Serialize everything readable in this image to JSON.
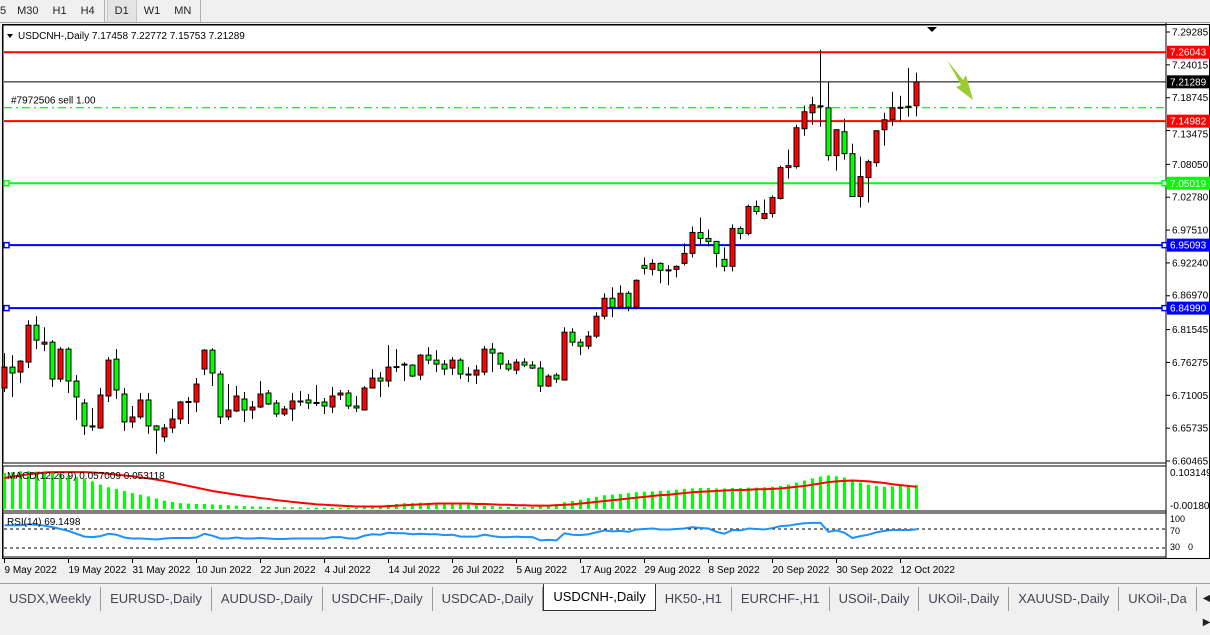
{
  "timeframes": {
    "items": [
      "5",
      "M30",
      "H1",
      "H4",
      "D1",
      "W1",
      "MN"
    ],
    "active": "D1"
  },
  "chart": {
    "header": "USDCNH-,Daily  7.17458 7.22772 7.15753 7.21289",
    "symbol": "USDCNH-",
    "period": "Daily",
    "order_label": "#7972506 sell 1.00",
    "order_level": 7.1714,
    "current_price": "7.21289",
    "price_ticks": [
      "7.29285",
      "7.24015",
      "7.18745",
      "7.13475",
      "7.08050",
      "7.02780",
      "6.97510",
      "6.92240",
      "6.86970",
      "6.81545",
      "6.76275",
      "6.71005",
      "6.65735",
      "6.60465"
    ],
    "levels": [
      {
        "value": "7.26043",
        "color": "#ff0000"
      },
      {
        "value": "7.14982",
        "color": "#ff0000"
      },
      {
        "value": "7.05019",
        "color": "#00ff00"
      },
      {
        "value": "6.95093",
        "color": "#0000ff"
      },
      {
        "value": "6.84990",
        "color": "#0000ff"
      }
    ],
    "colors": {
      "bull": "#ff0000",
      "bear": "#00ff00",
      "macd_hist": "#00ff00",
      "macd_signal": "#ff0000",
      "rsi": "#1e90ff",
      "arrow": "#9acd32",
      "order_line": "#00c800"
    },
    "arrow_icon": "down-right-arrow",
    "date_labels": [
      "9 May 2022",
      "19 May 2022",
      "31 May 2022",
      "10 Jun 2022",
      "22 Jun 2022",
      "4 Jul 2022",
      "14 Jul 2022",
      "26 Jul 2022",
      "5 Aug 2022",
      "17 Aug 2022",
      "29 Aug 2022",
      "8 Sep 2022",
      "20 Sep 2022",
      "30 Sep 2022",
      "12 Oct 2022"
    ],
    "macd": {
      "title": "MACD(12,26,9) 0.057009 0.053118",
      "scale_max": "0.103149",
      "scale_min": "-0.001805"
    },
    "rsi": {
      "title": "RSI(14) 69.1498",
      "levels": [
        "100",
        "70",
        "30",
        "0"
      ]
    }
  },
  "chart_data": {
    "type": "candlestick",
    "ohlc_order": [
      "open",
      "high",
      "low",
      "close"
    ],
    "ylim": [
      6.60465,
      7.29285
    ],
    "candles": [
      [
        6.7217,
        6.7777,
        6.7153,
        6.7553
      ],
      [
        6.7553,
        6.7745,
        6.7073,
        6.7457
      ],
      [
        6.7473,
        6.7665,
        6.7297,
        6.7649
      ],
      [
        6.7633,
        6.8305,
        6.7537,
        6.8225
      ],
      [
        6.8225,
        6.8369,
        6.7841,
        6.7985
      ],
      [
        6.7921,
        6.8193,
        6.7809,
        6.7953
      ],
      [
        6.7953,
        6.7985,
        6.7233,
        6.7361
      ],
      [
        6.7361,
        6.7873,
        6.7313,
        6.7841
      ],
      [
        6.7841,
        6.7873,
        6.7137,
        6.7329
      ],
      [
        6.7329,
        6.7425,
        6.6705,
        6.7073
      ],
      [
        6.6977,
        6.7041,
        6.6465,
        6.6609
      ],
      [
        6.6609,
        6.6897,
        6.6529,
        6.6593
      ],
      [
        6.6577,
        6.7217,
        6.6561,
        6.7105
      ],
      [
        6.7089,
        6.7713,
        6.6993,
        6.7665
      ],
      [
        6.7681,
        6.7841,
        6.7041,
        6.7185
      ],
      [
        6.7121,
        6.7217,
        6.6529,
        6.6673
      ],
      [
        6.6673,
        6.6929,
        6.6577,
        6.6753
      ],
      [
        6.6753,
        6.7137,
        6.6721,
        6.7025
      ],
      [
        6.7025,
        6.7137,
        6.6481,
        6.6609
      ],
      [
        6.6609,
        6.6625,
        6.6161,
        6.6545
      ],
      [
        6.6433,
        6.6641,
        6.6353,
        6.6577
      ],
      [
        6.6577,
        6.6881,
        6.6497,
        6.6721
      ],
      [
        6.6721,
        6.7009,
        6.6641,
        6.6993
      ],
      [
        6.6993,
        6.7073,
        6.6641,
        6.7001
      ],
      [
        6.6993,
        6.7377,
        6.6833,
        6.7281
      ],
      [
        6.7521,
        6.7841,
        6.7425,
        6.7825
      ],
      [
        6.7825,
        6.7857,
        6.7249,
        6.7457
      ],
      [
        6.7441,
        6.7489,
        6.6641,
        6.6753
      ],
      [
        6.6753,
        6.7281,
        6.6705,
        6.6865
      ],
      [
        6.6849,
        6.7249,
        6.6833,
        6.7089
      ],
      [
        6.7041,
        6.7153,
        6.6673,
        6.6865
      ],
      [
        6.6865,
        6.7009,
        6.6721,
        6.6913
      ],
      [
        6.6913,
        6.7329,
        6.6897,
        6.7121
      ],
      [
        6.7137,
        6.7185,
        6.6945,
        6.6961
      ],
      [
        6.6977,
        6.7025,
        6.6753,
        6.6801
      ],
      [
        6.6801,
        6.6929,
        6.6769,
        6.6881
      ],
      [
        6.6881,
        6.7137,
        6.6689,
        6.7009
      ],
      [
        6.7009,
        6.7169,
        6.6929,
        6.7001
      ],
      [
        6.7025,
        6.7121,
        6.6881,
        6.6977
      ],
      [
        6.6977,
        6.7265,
        6.6929,
        6.6985
      ],
      [
        6.6993,
        6.7057,
        6.6801,
        6.6929
      ],
      [
        6.6913,
        6.7233,
        6.6817,
        6.7089
      ],
      [
        6.7105,
        6.7185,
        6.7025,
        6.7137
      ],
      [
        6.7137,
        6.7185,
        6.6881,
        6.6929
      ],
      [
        6.6929,
        6.7089,
        6.6833,
        6.6897
      ],
      [
        6.6865,
        6.7249,
        6.6857,
        6.7217
      ],
      [
        6.7217,
        6.7521,
        6.7209,
        6.7377
      ],
      [
        6.7377,
        6.7473,
        6.7073,
        6.7329
      ],
      [
        6.7329,
        6.7905,
        6.7233,
        6.7553
      ],
      [
        6.7553,
        6.7841,
        6.7473,
        6.7561
      ],
      [
        6.7601,
        6.7633,
        6.7329,
        6.7597
      ],
      [
        6.7585,
        6.7601,
        6.7393,
        6.7409
      ],
      [
        6.7425,
        6.7761,
        6.7345,
        6.7745
      ],
      [
        6.7745,
        6.7873,
        6.7601,
        6.7665
      ],
      [
        6.7665,
        6.7825,
        6.7473,
        6.7601
      ],
      [
        6.7601,
        6.7665,
        6.7425,
        6.7521
      ],
      [
        6.7537,
        6.7713,
        6.7425,
        6.7665
      ],
      [
        6.7665,
        6.7697,
        6.7361,
        6.7441
      ],
      [
        6.7441,
        6.7553,
        6.7313,
        6.7433
      ],
      [
        6.7425,
        6.7585,
        6.7281,
        6.7505
      ],
      [
        6.7473,
        6.7889,
        6.7425,
        6.7841
      ],
      [
        6.7841,
        6.7937,
        6.7473,
        6.7777
      ],
      [
        6.7777,
        6.7793,
        6.7521,
        6.7601
      ],
      [
        6.7601,
        6.7665,
        6.7489,
        6.7521
      ],
      [
        6.7505,
        6.7681,
        6.7441,
        6.7633
      ],
      [
        6.7633,
        6.7697,
        6.7553,
        6.7585
      ],
      [
        6.7585,
        6.7649,
        6.7521,
        6.7537
      ],
      [
        6.7537,
        6.7649,
        6.7153,
        6.7249
      ],
      [
        6.7249,
        6.7441,
        6.7233,
        6.7409
      ],
      [
        6.7425,
        6.7457,
        6.7297,
        6.7361
      ],
      [
        6.7345,
        6.8193,
        6.7337,
        6.8113
      ],
      [
        6.8113,
        6.8177,
        6.7889,
        6.7953
      ],
      [
        6.7953,
        6.8001,
        6.7745,
        6.7889
      ],
      [
        6.7889,
        6.8129,
        6.7841,
        6.8049
      ],
      [
        6.8049,
        6.8433,
        6.8017,
        6.8369
      ],
      [
        6.8369,
        6.8737,
        6.8321,
        6.8657
      ],
      [
        6.8657,
        6.8833,
        6.8353,
        6.8513
      ],
      [
        6.8513,
        6.8865,
        6.8505,
        6.8737
      ],
      [
        6.8737,
        6.8769,
        6.8449,
        6.8513
      ],
      [
        6.8513,
        6.8961,
        6.8481,
        6.8945
      ],
      [
        6.9185,
        6.9313,
        6.9041,
        6.9137
      ],
      [
        6.9121,
        6.9281,
        6.9025,
        6.9217
      ],
      [
        6.9217,
        6.9233,
        6.8897,
        6.9105
      ],
      [
        6.9105,
        6.9185,
        6.8865,
        6.9113
      ],
      [
        6.9121,
        6.9185,
        6.8993,
        6.9169
      ],
      [
        6.9217,
        6.9537,
        6.9185,
        6.9377
      ],
      [
        6.9377,
        6.9809,
        6.9313,
        6.9713
      ],
      [
        6.9713,
        6.9953,
        6.9521,
        6.9617
      ],
      [
        6.9617,
        6.9761,
        6.9489,
        6.9569
      ],
      [
        6.9569,
        6.9577,
        6.9153,
        6.9377
      ],
      [
        6.9281,
        6.9473,
        6.9089,
        6.9169
      ],
      [
        6.9169,
        6.9841,
        6.9089,
        6.9777
      ],
      [
        6.9777,
        6.9809,
        6.9601,
        6.9697
      ],
      [
        6.9697,
        7.0161,
        6.9665,
        7.0129
      ],
      [
        7.0129,
        7.0225,
        7.0001,
        7.0049
      ],
      [
        6.9937,
        7.0241,
        6.9921,
        7.0017
      ],
      [
        7.0017,
        7.0305,
        6.9953,
        7.0273
      ],
      [
        7.0257,
        7.0785,
        7.0241,
        7.0753
      ],
      [
        7.0753,
        7.1041,
        7.0577,
        7.0785
      ],
      [
        7.0769,
        7.1441,
        7.0737,
        7.1393
      ],
      [
        7.1377,
        7.1745,
        7.1265,
        7.1649
      ],
      [
        7.1633,
        7.1889,
        7.1441,
        7.1761
      ],
      [
        7.1745,
        7.2641,
        7.1409,
        7.1737
      ],
      [
        7.1713,
        7.2129,
        7.0865,
        7.0945
      ],
      [
        7.0945,
        7.1369,
        7.0705,
        7.1361
      ],
      [
        7.1329,
        7.1537,
        7.0881,
        7.0977
      ],
      [
        7.0977,
        7.1137,
        7.0281,
        7.0289
      ],
      [
        7.0289,
        7.0929,
        7.0113,
        7.0609
      ],
      [
        7.0593,
        7.0881,
        7.0193,
        7.0849
      ],
      [
        7.0833,
        7.1353,
        7.0769,
        7.1345
      ],
      [
        7.1361,
        7.1633,
        7.1105,
        7.1521
      ],
      [
        7.1521,
        7.1969,
        7.1425,
        7.1713
      ],
      [
        7.1713,
        7.1905,
        7.1505,
        7.1721
      ],
      [
        7.1729,
        7.2353,
        7.1569,
        7.1737
      ],
      [
        7.17458,
        7.22772,
        7.15753,
        7.21289
      ]
    ],
    "macd_histogram": [
      0.086,
      0.088,
      0.09,
      0.09,
      0.089,
      0.088,
      0.086,
      0.084,
      0.08,
      0.076,
      0.072,
      0.066,
      0.058,
      0.052,
      0.048,
      0.043,
      0.038,
      0.034,
      0.03,
      0.025,
      0.02,
      0.017,
      0.014,
      0.013,
      0.012,
      0.012,
      0.011,
      0.01,
      0.009,
      0.008,
      0.007,
      0.006,
      0.006,
      0.005,
      0.005,
      0.004,
      0.004,
      0.004,
      0.003,
      0.003,
      0.003,
      0.003,
      0.003,
      0.003,
      0.003,
      0.004,
      0.006,
      0.008,
      0.01,
      0.012,
      0.014,
      0.014,
      0.015,
      0.015,
      0.015,
      0.014,
      0.013,
      0.013,
      0.012,
      0.01,
      0.008,
      0.007,
      0.006,
      0.005,
      0.005,
      0.004,
      0.005,
      0.006,
      0.008,
      0.012,
      0.016,
      0.019,
      0.022,
      0.026,
      0.029,
      0.033,
      0.034,
      0.036,
      0.038,
      0.04,
      0.041,
      0.042,
      0.043,
      0.044,
      0.046,
      0.048,
      0.049,
      0.05,
      0.05,
      0.049,
      0.049,
      0.05,
      0.05,
      0.051,
      0.051,
      0.052,
      0.053,
      0.055,
      0.058,
      0.063,
      0.068,
      0.073,
      0.077,
      0.08,
      0.078,
      0.075,
      0.07,
      0.063,
      0.058,
      0.055,
      0.053,
      0.054,
      0.055,
      0.056,
      0.057009
    ],
    "macd_signal": [
      0.074,
      0.077,
      0.08,
      0.083,
      0.085,
      0.087,
      0.088,
      0.088,
      0.088,
      0.088,
      0.088,
      0.087,
      0.086,
      0.084,
      0.082,
      0.08,
      0.078,
      0.075,
      0.073,
      0.07,
      0.067,
      0.063,
      0.059,
      0.055,
      0.051,
      0.047,
      0.043,
      0.04,
      0.037,
      0.034,
      0.031,
      0.029,
      0.026,
      0.024,
      0.021,
      0.019,
      0.017,
      0.015,
      0.013,
      0.011,
      0.01,
      0.009,
      0.008,
      0.007,
      0.006,
      0.006,
      0.006,
      0.006,
      0.007,
      0.008,
      0.009,
      0.01,
      0.011,
      0.012,
      0.013,
      0.013,
      0.013,
      0.013,
      0.013,
      0.012,
      0.012,
      0.011,
      0.01,
      0.01,
      0.009,
      0.009,
      0.008,
      0.008,
      0.008,
      0.009,
      0.01,
      0.011,
      0.013,
      0.015,
      0.017,
      0.019,
      0.021,
      0.023,
      0.025,
      0.027,
      0.029,
      0.031,
      0.033,
      0.034,
      0.036,
      0.038,
      0.04,
      0.041,
      0.042,
      0.043,
      0.044,
      0.045,
      0.045,
      0.046,
      0.047,
      0.047,
      0.048,
      0.049,
      0.051,
      0.053,
      0.055,
      0.058,
      0.061,
      0.064,
      0.066,
      0.067,
      0.068,
      0.067,
      0.066,
      0.064,
      0.062,
      0.059,
      0.057,
      0.055,
      0.053118
    ],
    "rsi": [
      78,
      78,
      78,
      80,
      79,
      77,
      74,
      70,
      66,
      60,
      54,
      53,
      55,
      60,
      58,
      52,
      50,
      50,
      49,
      48,
      50,
      51,
      51,
      51,
      52,
      60,
      56,
      50,
      50,
      52,
      50,
      50,
      51,
      50,
      49,
      49,
      50,
      50,
      50,
      50,
      50,
      53,
      53,
      50,
      50,
      56,
      59,
      58,
      62,
      61,
      61,
      59,
      60,
      59,
      59,
      57,
      58,
      54,
      54,
      54,
      58,
      55,
      53,
      53,
      54,
      53,
      53,
      46,
      47,
      46,
      61,
      58,
      57,
      59,
      63,
      67,
      65,
      66,
      64,
      69,
      70,
      71,
      69,
      69,
      70,
      71,
      74,
      72,
      71,
      64,
      60,
      68,
      67,
      71,
      70,
      69,
      72,
      76,
      77,
      80,
      82,
      83,
      83,
      64,
      67,
      62,
      51,
      55,
      58,
      63,
      66,
      68,
      68,
      68,
      69.1498
    ]
  },
  "tabs": {
    "items": [
      "USDX,Weekly",
      "EURUSD-,Daily",
      "AUDUSD-,Daily",
      "USDCHF-,Daily",
      "USDCAD-,Daily",
      "USDCNH-,Daily",
      "HK50-,H1",
      "EURCHF-,H1",
      "USOil-,Daily",
      "UKOil-,Daily",
      "XAUUSD-,Daily",
      "UKOil-,Da"
    ],
    "active": "USDCNH-,Daily",
    "scroll_icons": [
      "scroll-left-icon",
      "scroll-right-icon"
    ]
  }
}
